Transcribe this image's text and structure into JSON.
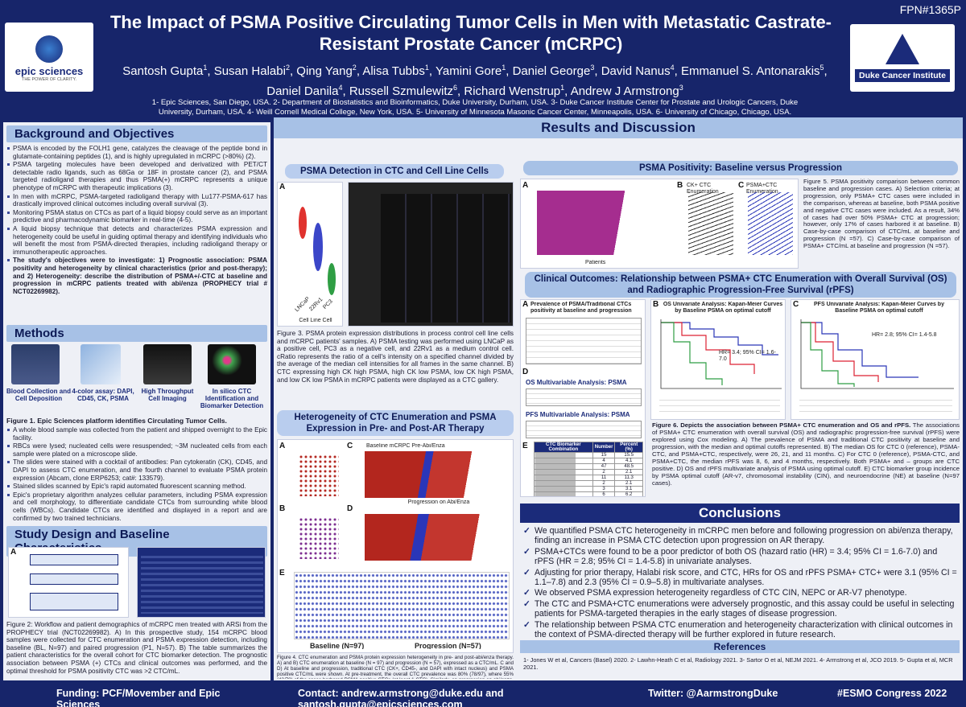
{
  "header": {
    "poster_id": "FPN#1365P",
    "title": "The Impact of PSMA Positive Circulating Tumor Cells in Men with Metastatic Castrate-Resistant Prostate Cancer (mCRPC)",
    "authors": [
      {
        "name": "Santosh Gupta",
        "aff": "1"
      },
      {
        "name": "Susan Halabi",
        "aff": "2"
      },
      {
        "name": "Qing Yang",
        "aff": "2"
      },
      {
        "name": "Alisa Tubbs",
        "aff": "1"
      },
      {
        "name": "Yamini Gore",
        "aff": "1"
      },
      {
        "name": "Daniel George",
        "aff": "3"
      },
      {
        "name": "David Nanus",
        "aff": "4"
      },
      {
        "name": "Emmanuel S. Antonarakis",
        "aff": "5"
      },
      {
        "name": "Daniel Danila",
        "aff": "4"
      },
      {
        "name": "Russell Szmulewitz",
        "aff": "6"
      },
      {
        "name": "Richard Wenstrup",
        "aff": "1"
      },
      {
        "name": "Andrew J Armstrong",
        "aff": "3"
      }
    ],
    "affiliations": "1- Epic Sciences, San Diego, USA. 2- Department of Biostatistics and Bioinformatics, Duke University, Durham, USA. 3- Duke Cancer Institute Center for Prostate and Urologic Cancers, Duke University, Durham, USA. 4- Weill Cornell Medical College, New York, USA. 5- University of Minnesota Masonic Cancer Center, Minneapolis, USA. 6- University of Chicago, Chicago, USA.",
    "logo_left": "epic sciences",
    "logo_left_tagline": "THE POWER OF CLARITY.",
    "logo_right": "Duke Cancer Institute"
  },
  "background": {
    "heading": "Background and Objectives",
    "bullets": [
      "PSMA is encoded by the FOLH1 gene, catalyzes the cleavage of the peptide bond in glutamate-containing peptides (1), and is highly upregulated in mCRPC (>80%) (2).",
      "PSMA targeting molecules have been developed and derivatized with PET/CT detectable radio ligands, such as 68Ga or 18F in prostate cancer (2), and PSMA targeted radioligand therapies and thus PSMA(+) mCRPC represents a unique phenotype of mCRPC with therapeutic implications (3).",
      "In men with mCRPC, PSMA-targeted radioligand therapy with Lu177-PSMA-617 has drastically improved clinical outcomes including overall survival (3).",
      "Monitoring PSMA status on CTCs as part of a liquid biopsy could serve as an important predictive and pharmacodynamic biomarker in real-time (4-5).",
      "A liquid biopsy technique that detects and characterizes PSMA expression and heterogeneity could be useful in guiding optimal therapy and identifying individuals who will benefit the most from PSMA-directed therapies, including radioligand therapy or immunotherapeutic approaches."
    ],
    "objectives": "The study's objectives were to investigate: 1) Prognostic association: PSMA positivity and heterogeneity by clinical characteristics (prior and post-therapy); and 2) Heterogeneity: describe the distribution of PSMA+/-CTC at baseline and progression in mCRPC patients treated with abi/enza (PROPHECY trial # NCT02269982)."
  },
  "methods": {
    "heading": "Methods",
    "steps": [
      "Blood Collection and Cell Deposition",
      "4-color assay: DAPI, CD45, CK, PSMA",
      "High Throughput Cell Imaging",
      "In silico CTC Identification and Biomarker Detection"
    ],
    "caption": "Figure 1. Epic Sciences platform identifies Circulating Tumor Cells.",
    "bullets": [
      "A whole blood sample was collected from the patient and shipped overnight to the Epic facility.",
      "RBCs were lysed; nucleated cells were resuspended; ~3M nucleated cells from each sample were plated on a microscope slide.",
      "The slides were stained with a cocktail of antibodies: Pan cytokeratin (CK), CD45, and DAPI to assess CTC enumeration, and the fourth channel to evaluate PSMA protein expression (Abcam, clone ERP6253; cat#: 133579).",
      "Stained slides scanned by Epic's rapid automated fluorescent scanning method.",
      "Epic's proprietary algorithm analyzes cellular parameters, including PSMA expression and cell morphology, to differentiate candidate CTCs from surrounding white blood cells (WBCs). Candidate CTCs are identified and displayed in a report and are confirmed by two trained technicians."
    ]
  },
  "study_design": {
    "heading": "Study Design and Baseline Characteristics",
    "panels": [
      "A",
      "B"
    ],
    "caption": "Figure 2: Workflow and patient demographics of mCRPC men treated with ARSi from the PROPHECY trial (NCT02269982). A) In this prospective study, 154 mCRPC blood samples were collected for CTC enumeration and PSMA expression detection, including baseline (BL, N=97) and paired progression (P1, N=57). B) The table summarizes the patient characteristics for the overall cohort for CTC biomarker detection. The prognostic association between PSMA (+) CTCs and clinical outcomes was performed, and the optimal threshold for PSMA positivity CTC was >2 CTC/mL."
  },
  "results": {
    "heading": "Results and Discussion",
    "psma_detection": {
      "title": "PSMA Detection in CTC and Cell Line Cells",
      "panels": [
        "A",
        "B"
      ],
      "cell_lines": [
        "LNCaP",
        "22Rv1",
        "PC3"
      ],
      "x_label": "Cell Line Cell",
      "caption": "Figure 3. PSMA protein expression distributions in process control cell line cells and mCRPC patients' samples. A) PSMA testing was performed using LNCaP as a positive cell, PC3 as a negative cell, and 22Rv1 as a medium control cell. cRatio represents the ratio of a cell's intensity on a specified channel divided by the average of the median cell intensities for all frames in the same channel. B) CTC expressing high CK high PSMA, high CK low PSMA, low CK high PSMA, and low CK low PSMA in mCRPC patients were displayed as a CTC gallery."
    },
    "heterogeneity": {
      "title": "Heterogeneity of CTC Enumeration and PSMA Expression in Pre- and Post-AR Therapy",
      "panels": [
        "A",
        "B",
        "C",
        "D",
        "E"
      ],
      "baseline_label": "Baseline mCRPC Pre-Abi/Enza",
      "progression_label": "Progression on Abi/Enza",
      "axis_baseline": "Baseline (N=97)",
      "axis_progression": "Progression (N=57)",
      "caption": "Figure 4. CTC enumeration and PSMA protein expression heterogeneity in pre- and post-abi/enza therapy. A) and B) CTC enumeration at baseline (N = 97) and progression (N = 57), expressed as a CTC/mL. C and D) At baseline and progression, traditional CTC (CK+, CD45-, and DAPI with intact nucleus) and PSMA positive CTC/mL were shown. At pre-treatment, the overall CTC prevalence was 80% (78/97), where 55% (43/78) of the cases harbored PSMA positive CTCs (at least 1 CTC). Similarly, on progression on abi/enza, 88% (50/57) of cases detected CTCs with 68% (34/50) PSMA CTC positive. E) PSMA protein expression distribution in single cell CTCs before and after therapy."
    },
    "positivity": {
      "title": "PSMA Positivity: Baseline versus Progression",
      "panels": [
        "A",
        "B",
        "C"
      ],
      "panel_titles": [
        "CK+ CTC Enumeration",
        "PSMA+CTC Enumeration"
      ],
      "x_label": "Patients",
      "caption": "Figure 5. PSMA positivity comparison between common baseline and progression cases. A) Selection criteria; at progression, only PSMA+ CTC cases were included in the comparison, whereas at baseline, both PSMA positive and negative CTC cases were included. As a result, 34% of cases had over 50% PSMA+ CTC at progression; however, only 17% of cases harbored it at baseline. B) Case-by-case comparison of CTC/mL at baseline and progression (N =57). C) Case-by-case comparison of PSMA+ CTC/mL at baseline and progression (N =57)."
    },
    "clinical": {
      "title": "Clinical Outcomes: Relationship between PSMA+ CTC Enumeration with Overall Survival (OS) and Radiographic Progression-Free Survival (rPFS)",
      "panels": [
        "A",
        "B",
        "C",
        "D",
        "E"
      ],
      "prevalence_title": "Prevalence of PSMA/Traditional CTCs positivity at baseline and progression",
      "os_title": "OS Univariate Analysis: Kapan-Meier Curves by Baseline PSMA on optimal cutoff",
      "pfs_title": "PFS Univariate Analysis: Kapan-Meier Curves by Baseline PSMA on optimal cutoff",
      "os_hr": "HR= 3.4; 95% CI= 1.6-7.0",
      "pfs_hr": "HR= 2.8; 95% CI= 1.4-5.8",
      "os_multi": "OS Multivariable Analysis: PSMA",
      "pfs_multi": "PFS Multivariable Analysis: PSMA",
      "table_header": [
        "CTC Biomarker Combination",
        "Number",
        "Percent (%)"
      ],
      "table_rows": [
        [
          "15",
          "15.5"
        ],
        [
          "4",
          "4.1"
        ],
        [
          "47",
          "48.5"
        ],
        [
          "2",
          "2.1"
        ],
        [
          "11",
          "11.3"
        ],
        [
          "2",
          "2.1"
        ],
        [
          "3",
          "3.1"
        ],
        [
          "6",
          "6.2"
        ],
        [
          "3",
          "3.1"
        ],
        [
          "2",
          "2.1"
        ],
        [
          "2",
          "2.1"
        ]
      ],
      "table_total": [
        "Total",
        "97",
        "100.0"
      ],
      "caption_title": "Figure 6. Depicts the association between PSMA+ CTC enumeration and OS and rPFS.",
      "caption": "The associations of PSMA+ CTC enumeration with overall survival (OS) and radiographic progression-free survival (rPFS) were explored using Cox modeling. A) The prevalence of PSMA and traditional CTC positivity at baseline and progression, with the median and optimal cutoffs represented. B) The median OS for CTC 0 (reference), PSMA-CTC, and PSMA+CTC, respectively, were 26, 21, and 11 months. C) For CTC 0 (reference), PSMA-CTC, and PSMA+CTC, the median rPFS was 8, 6, and 4 months, respectively. Both PSMA+ and – groups are CTC positive. D) OS and rPFS multivariate analysis of PSMA using optimal cutoff. E) CTC biomarker group incidence by PSMA optimal cutoff (AR-v7, chromosomal instability (CIN), and neuroendocrine (NE) at baseline (N=97 cases)."
    }
  },
  "conclusions": {
    "heading": "Conclusions",
    "bullets": [
      "We quantified PSMA CTC heterogeneity in mCRPC men before and following progression on abi/enza therapy, finding an increase in PSMA CTC detection upon progression on AR therapy.",
      "PSMA+CTCs were found to be a poor predictor of both OS (hazard ratio (HR) = 3.4; 95% CI = 1.6-7.0) and rPFS (HR = 2.8; 95% CI = 1.4-5.8) in univariate analyses.",
      "Adjusting for prior therapy, Halabi risk score, and CTC, HRs for OS and rPFS PSMA+ CTC+ were 3.1 (95% CI = 1.1–7.8) and 2.3 (95% CI = 0.9–5.8) in multivariate analyses.",
      "We observed PSMA expression heterogeneity regardless of CTC CIN, NEPC or AR-V7 phenotype.",
      "The CTC and PSMA+CTC enumerations were adversely prognostic, and this assay could be useful in selecting patients for PSMA-targeted therapies in the early stages of disease progression.",
      "The relationship between PSMA CTC enumeration and heterogeneity characterization with clinical outcomes in the context of PSMA-directed therapy will be further explored in future research."
    ]
  },
  "references": {
    "heading": "References",
    "text": "1- Jones W et al, Cancers (Basel) 2020. 2- Lawhn-Heath C et al, Radiology 2021. 3- Sartor O et al, NEJM 2021. 4- Armstrong et al, JCO 2019. 5- Gupta et al, MCR 2021."
  },
  "footer": {
    "funding": "Funding: PCF/Movember and Epic Sciences",
    "contact": "Contact: andrew.armstrong@duke.edu and santosh.gupta@epicsciences.com",
    "twitter": "Twitter: @AarmstrongDuke",
    "congress": "#ESMO Congress 2022"
  }
}
